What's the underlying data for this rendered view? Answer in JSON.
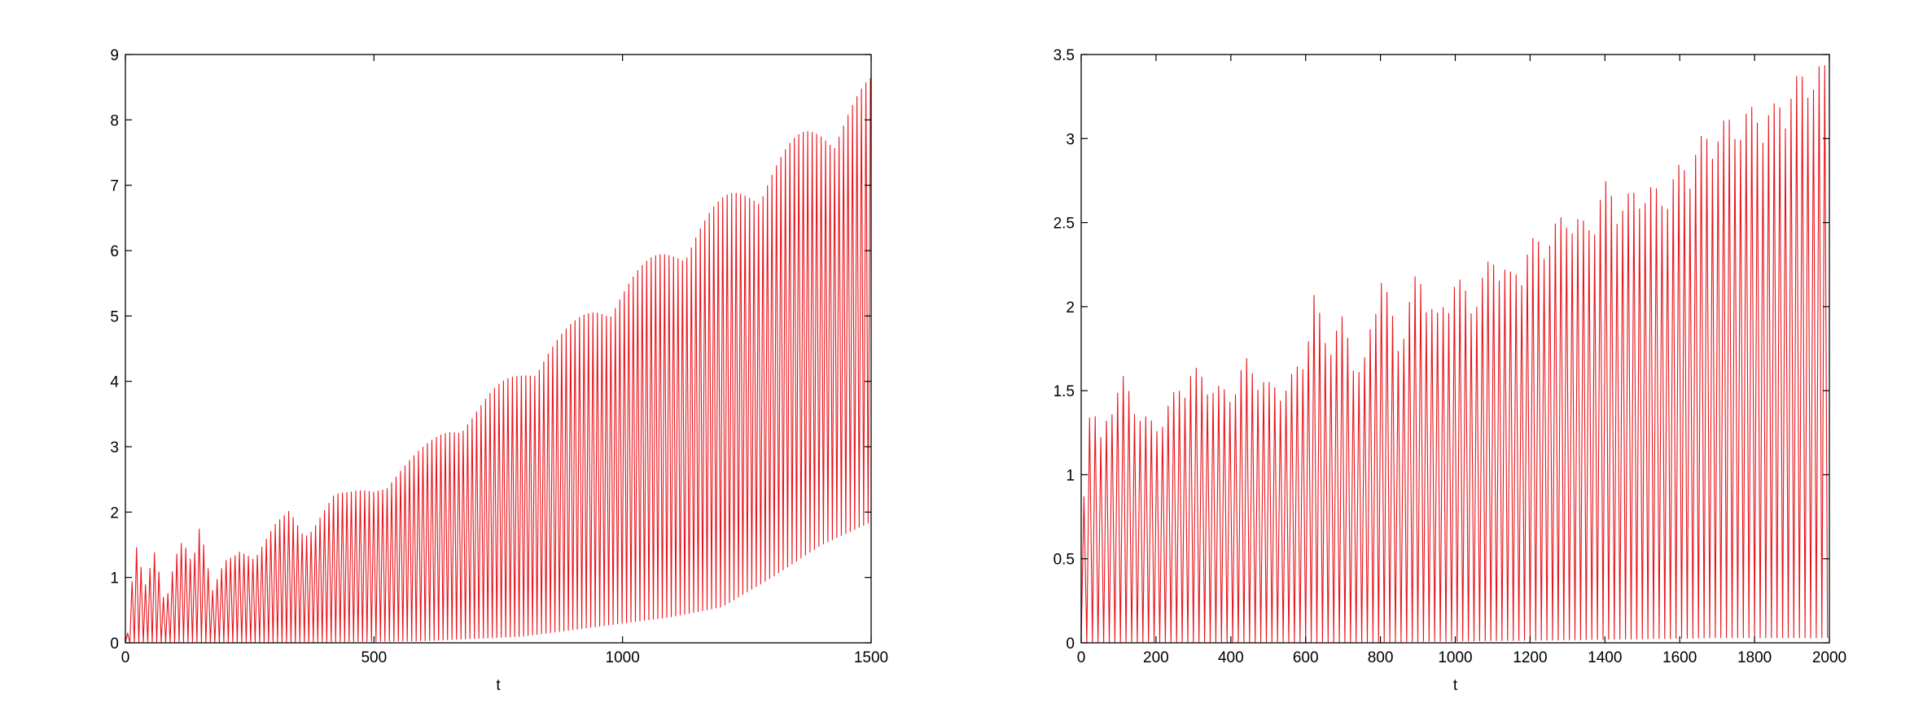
{
  "colors": {
    "series": "#e8141b",
    "axes": "#000000",
    "background": "#ffffff"
  },
  "chart_data": [
    {
      "type": "line",
      "xlabel": "t",
      "ylabel": "",
      "xlim": [
        0,
        1500
      ],
      "ylim": [
        0,
        9
      ],
      "xticks": [
        0,
        500,
        1000,
        1500
      ],
      "yticks": [
        0,
        1,
        2,
        3,
        4,
        5,
        6,
        7,
        8,
        9
      ],
      "grid": false,
      "oscillation_period": 9,
      "series": [
        {
          "color": "#e8141b",
          "description_points": "upper envelope of rapid oscillation (t, value)",
          "envelope_upper": [
            [
              5,
              0.15
            ],
            [
              20,
              1.55
            ],
            [
              40,
              0.9
            ],
            [
              60,
              1.5
            ],
            [
              80,
              0.6
            ],
            [
              100,
              1.35
            ],
            [
              115,
              1.6
            ],
            [
              135,
              1.2
            ],
            [
              150,
              1.8
            ],
            [
              175,
              0.8
            ],
            [
              200,
              1.3
            ],
            [
              230,
              1.5
            ],
            [
              260,
              1.3
            ],
            [
              300,
              1.8
            ],
            [
              330,
              2.05
            ],
            [
              360,
              1.7
            ],
            [
              400,
              2.1
            ],
            [
              420,
              2.3
            ],
            [
              450,
              2.3
            ],
            [
              500,
              2.4
            ],
            [
              550,
              2.7
            ],
            [
              600,
              3.0
            ],
            [
              650,
              3.35
            ],
            [
              700,
              3.6
            ],
            [
              750,
              3.95
            ],
            [
              800,
              4.25
            ],
            [
              850,
              4.6
            ],
            [
              900,
              4.9
            ],
            [
              950,
              5.25
            ],
            [
              1000,
              5.55
            ],
            [
              1050,
              5.85
            ],
            [
              1100,
              6.15
            ],
            [
              1150,
              6.5
            ],
            [
              1200,
              6.8
            ],
            [
              1250,
              7.1
            ],
            [
              1300,
              7.45
            ],
            [
              1350,
              7.75
            ],
            [
              1400,
              8.05
            ],
            [
              1450,
              8.35
            ],
            [
              1500,
              8.65
            ]
          ],
          "envelope_lower": [
            [
              0,
              0.0
            ],
            [
              300,
              0.0
            ],
            [
              600,
              0.03
            ],
            [
              800,
              0.1
            ],
            [
              1000,
              0.3
            ],
            [
              1100,
              0.4
            ],
            [
              1200,
              0.55
            ],
            [
              1300,
              1.0
            ],
            [
              1400,
              1.5
            ],
            [
              1500,
              1.85
            ]
          ]
        }
      ]
    },
    {
      "type": "line",
      "xlabel": "t",
      "ylabel": "",
      "xlim": [
        0,
        2000
      ],
      "ylim": [
        0,
        3.5
      ],
      "xticks": [
        0,
        200,
        400,
        600,
        800,
        1000,
        1200,
        1400,
        1600,
        1800,
        2000
      ],
      "yticks": [
        0,
        0.5,
        1,
        1.5,
        2,
        2.5,
        3,
        3.5
      ],
      "grid": false,
      "oscillation_period": 15,
      "series": [
        {
          "color": "#e8141b",
          "description_points": "upper envelope of rapid oscillation (t, value)",
          "envelope_upper": [
            [
              10,
              0.9
            ],
            [
              25,
              1.55
            ],
            [
              50,
              1.2
            ],
            [
              80,
              1.45
            ],
            [
              110,
              1.6
            ],
            [
              150,
              1.4
            ],
            [
              200,
              1.3
            ],
            [
              250,
              1.5
            ],
            [
              300,
              1.65
            ],
            [
              350,
              1.55
            ],
            [
              400,
              1.5
            ],
            [
              440,
              1.7
            ],
            [
              500,
              1.55
            ],
            [
              550,
              1.55
            ],
            [
              600,
              1.75
            ],
            [
              620,
              2.1
            ],
            [
              660,
              1.8
            ],
            [
              700,
              1.95
            ],
            [
              750,
              1.6
            ],
            [
              800,
              2.25
            ],
            [
              850,
              1.8
            ],
            [
              900,
              2.25
            ],
            [
              950,
              1.95
            ],
            [
              1000,
              2.2
            ],
            [
              1050,
              2.05
            ],
            [
              1100,
              2.35
            ],
            [
              1150,
              2.2
            ],
            [
              1200,
              2.4
            ],
            [
              1250,
              2.45
            ],
            [
              1300,
              2.6
            ],
            [
              1350,
              2.5
            ],
            [
              1400,
              2.75
            ],
            [
              1450,
              2.65
            ],
            [
              1500,
              2.75
            ],
            [
              1550,
              2.7
            ],
            [
              1600,
              2.85
            ],
            [
              1650,
              3.0
            ],
            [
              1700,
              3.1
            ],
            [
              1750,
              3.15
            ],
            [
              1800,
              3.2
            ],
            [
              1850,
              3.2
            ],
            [
              1900,
              3.35
            ],
            [
              1950,
              3.45
            ],
            [
              2000,
              3.45
            ]
          ],
          "envelope_lower": [
            [
              0,
              0.0
            ],
            [
              700,
              0.0
            ],
            [
              1000,
              0.01
            ],
            [
              1400,
              0.02
            ],
            [
              1700,
              0.03
            ],
            [
              2000,
              0.03
            ]
          ]
        }
      ]
    }
  ]
}
